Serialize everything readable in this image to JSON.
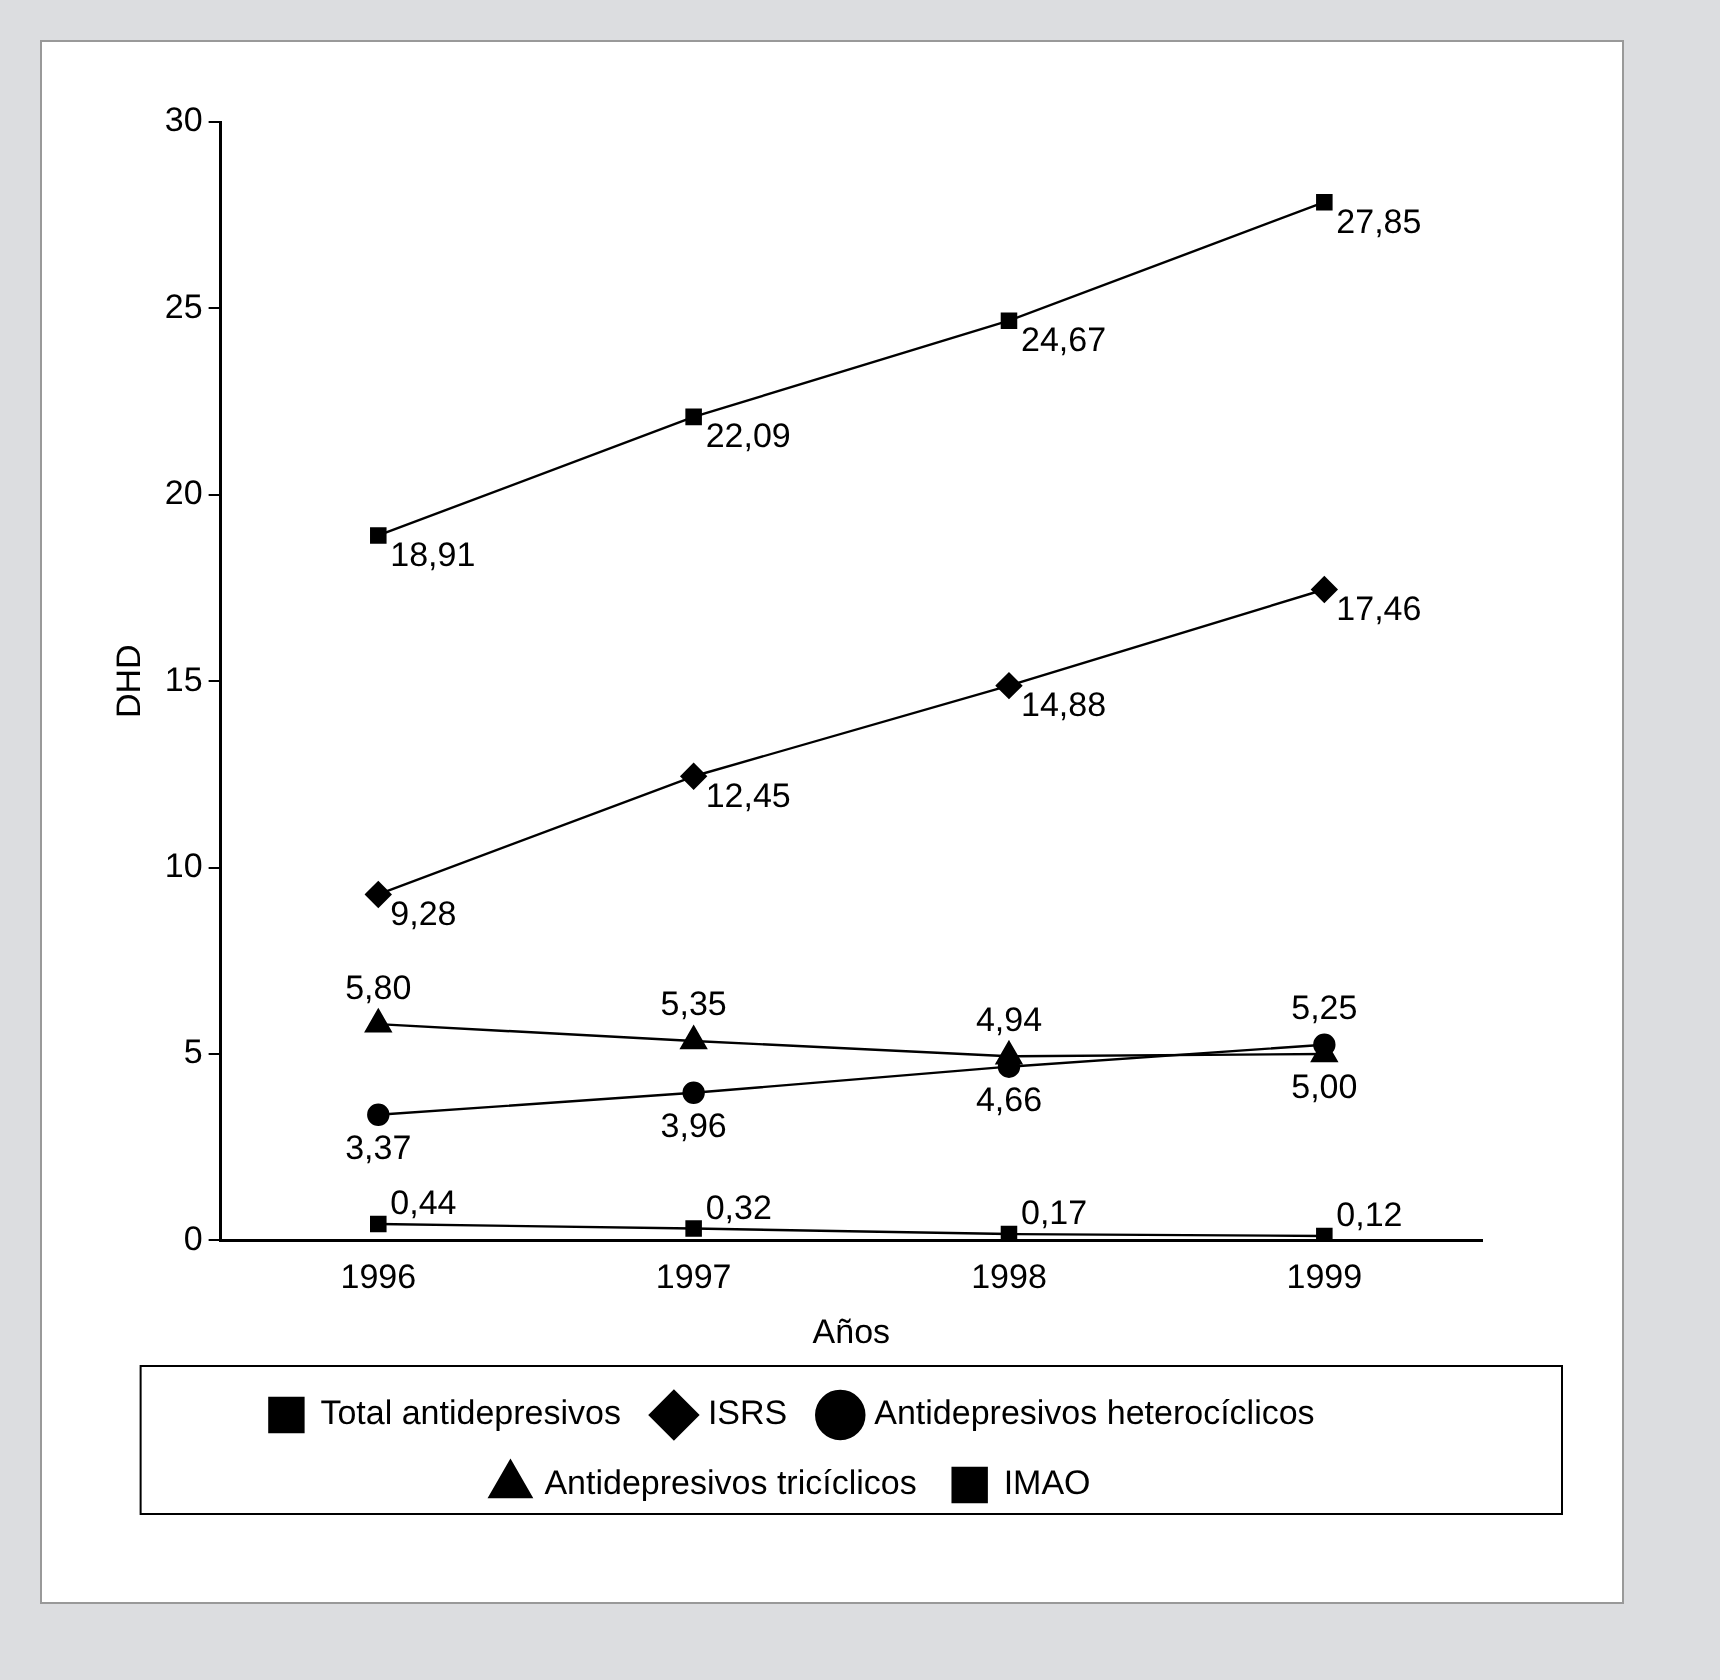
{
  "chart_data": {
    "type": "line",
    "xlabel": "Años",
    "ylabel": "DHD",
    "categories": [
      "1996",
      "1997",
      "1998",
      "1999"
    ],
    "ylim": [
      0,
      30
    ],
    "yticks": [
      0,
      5,
      10,
      15,
      20,
      25,
      30
    ],
    "grid": false,
    "legend": "bottom",
    "line_style": "solid",
    "series": [
      {
        "name": "Total antidepresivos",
        "color": "#000000",
        "marker": "square",
        "values": [
          18.91,
          22.09,
          24.67,
          27.85
        ],
        "value_labels": [
          "18,91",
          "22,09",
          "24,67",
          "27,85"
        ]
      },
      {
        "name": "ISRS",
        "color": "#000000",
        "marker": "diamond",
        "values": [
          9.28,
          12.45,
          14.88,
          17.46
        ],
        "value_labels": [
          "9,28",
          "12,45",
          "14,88",
          "17,46"
        ]
      },
      {
        "name": "Antidepresivos heterocíclicos",
        "color": "#000000",
        "marker": "circle",
        "values": [
          3.37,
          3.96,
          4.66,
          5.25
        ],
        "value_labels": [
          "3,37",
          "3,96",
          "4,66",
          "5,25"
        ]
      },
      {
        "name": "Antidepresivos tricíclicos",
        "color": "#000000",
        "marker": "triangle",
        "values": [
          5.8,
          5.35,
          4.94,
          5.0
        ],
        "value_labels": [
          "5,80",
          "5,35",
          "4,94",
          "5,00"
        ]
      },
      {
        "name": "IMAO",
        "color": "#000000",
        "marker": "square",
        "values": [
          0.44,
          0.32,
          0.17,
          0.12
        ],
        "value_labels": [
          "0,44",
          "0,32",
          "0,17",
          "0,12"
        ]
      }
    ]
  }
}
